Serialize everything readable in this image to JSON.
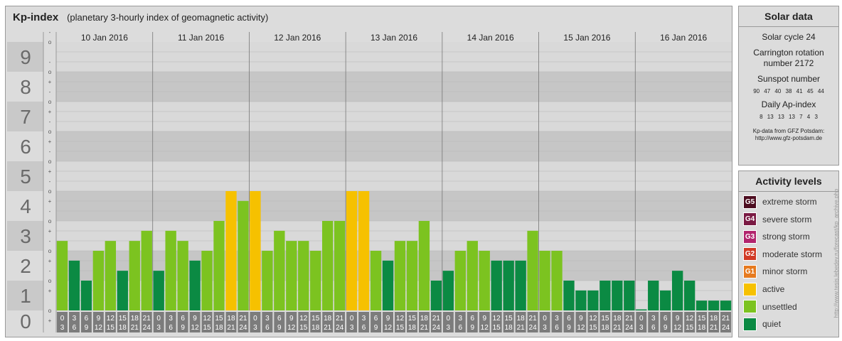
{
  "header": {
    "title": "Kp-index",
    "subtitle": "(planetary 3-hourly index of geomagnetic activity)"
  },
  "solar": {
    "heading": "Solar data",
    "cycle": "Solar cycle 24",
    "carrington": "Carrington rotation number 2172",
    "sunspot_label": "Sunspot number",
    "sunspot_values": "90 47 40 38 41 45 44",
    "ap_label": "Daily Ap-index",
    "ap_values": "8 13 13 13 7 4 3",
    "note_1": "Kp-data from GFZ Potsdam:",
    "note_2": "http://www.gfz-potsdam.de"
  },
  "levels": {
    "heading": "Activity levels",
    "items": [
      {
        "code": "G5",
        "label": "extreme storm",
        "color": "#4d0d20",
        "icon": "g5-badge-icon"
      },
      {
        "code": "G4",
        "label": "severe storm",
        "color": "#7a1a43",
        "icon": "g4-badge-icon"
      },
      {
        "code": "G3",
        "label": "strong storm",
        "color": "#b2246d",
        "icon": "g3-badge-icon"
      },
      {
        "code": "G2",
        "label": "moderate storm",
        "color": "#d13a25",
        "icon": "g2-badge-icon"
      },
      {
        "code": "G1",
        "label": "minor storm",
        "color": "#e67a1f",
        "icon": "g1-badge-icon"
      },
      {
        "code": "",
        "label": "active",
        "color": "#f6c100",
        "icon": "active-swatch-icon"
      },
      {
        "code": "",
        "label": "unsettled",
        "color": "#7cc320",
        "icon": "unsettled-swatch-icon"
      },
      {
        "code": "",
        "label": "quiet",
        "color": "#0b8a43",
        "icon": "quiet-swatch-icon"
      }
    ]
  },
  "side_credit": "http://www.tesis.lebedev.ru/forecast/kp_archive.php",
  "chart_data": {
    "type": "bar",
    "ylim": [
      0,
      9
    ],
    "y_ticks": [
      "0",
      "1",
      "2",
      "3",
      "4",
      "5",
      "6",
      "7",
      "8",
      "9"
    ],
    "sub_ticks": [
      "+",
      "o",
      "-"
    ],
    "days": [
      "10 Jan 2016",
      "11 Jan 2016",
      "12 Jan 2016",
      "13 Jan 2016",
      "14 Jan 2016",
      "15 Jan 2016",
      "16 Jan 2016"
    ],
    "hour_starts": [
      "0",
      "3",
      "6",
      "9",
      "12",
      "15",
      "18",
      "21"
    ],
    "hour_ends": [
      "3",
      "6",
      "9",
      "12",
      "15",
      "18",
      "21",
      "24"
    ],
    "values": [
      [
        2.33,
        1.67,
        1.0,
        2.0,
        2.33,
        1.33,
        2.33,
        2.67
      ],
      [
        1.33,
        2.67,
        2.33,
        1.67,
        2.0,
        3.0,
        4.0,
        3.67
      ],
      [
        4.0,
        2.0,
        2.67,
        2.33,
        2.33,
        2.0,
        3.0,
        3.0
      ],
      [
        4.0,
        4.0,
        2.0,
        1.67,
        2.33,
        2.33,
        3.0,
        1.0
      ],
      [
        1.33,
        2.0,
        2.33,
        2.0,
        1.67,
        1.67,
        1.67,
        2.67
      ],
      [
        2.0,
        2.0,
        1.0,
        0.67,
        0.67,
        1.0,
        1.0,
        1.0
      ],
      [
        0.0,
        1.0,
        0.67,
        1.33,
        1.0,
        0.33,
        0.33,
        0.33
      ]
    ],
    "colors": {
      "quiet": "#0b8a43",
      "unsettled": "#7cc320",
      "active": "#f6c100",
      "storm": "#e67a1f"
    }
  }
}
